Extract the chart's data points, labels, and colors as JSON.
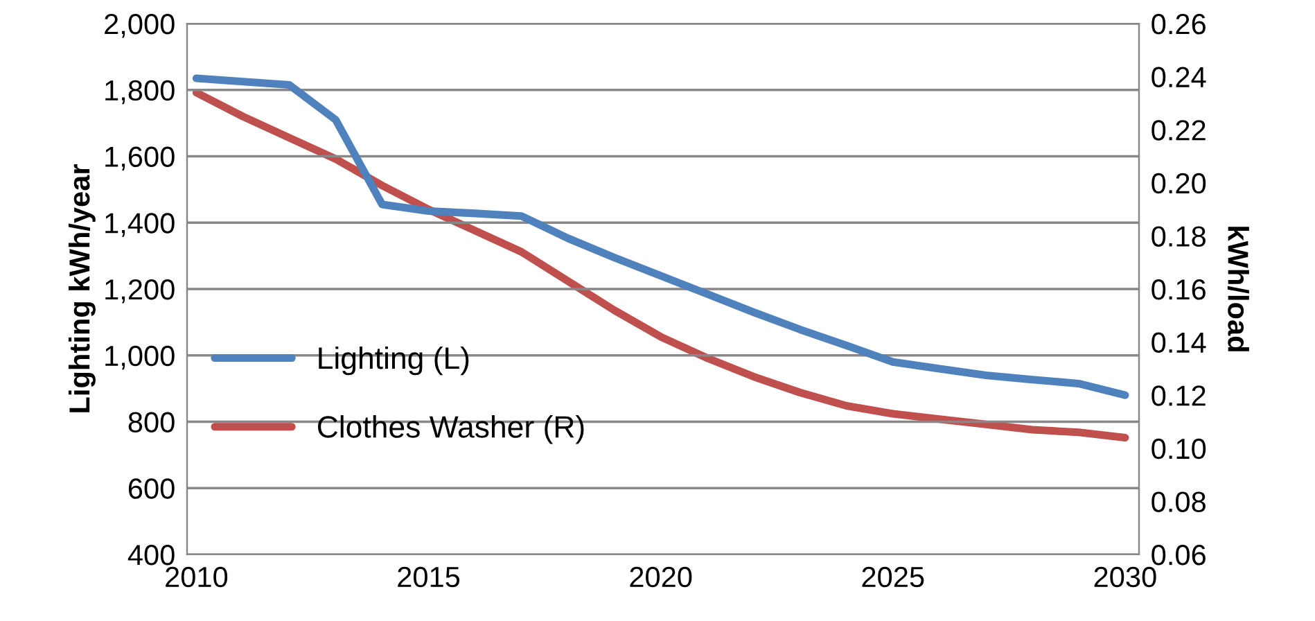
{
  "chart_data": {
    "type": "line",
    "ylabel": "Lighting kWh/year",
    "y2label": "kWh/load",
    "x": [
      2010,
      2011,
      2012,
      2013,
      2014,
      2015,
      2016,
      2017,
      2018,
      2019,
      2020,
      2021,
      2022,
      2023,
      2024,
      2025,
      2026,
      2027,
      2028,
      2029,
      2030
    ],
    "series": [
      {
        "name": "Lighting (L)",
        "color": "#4f81bd",
        "values": [
          1835,
          1825,
          1815,
          1710,
          1455,
          1435,
          1428,
          1420,
          1353,
          1295,
          1240,
          1185,
          1130,
          1078,
          1030,
          980,
          960,
          940,
          927,
          915,
          880
        ]
      },
      {
        "name": "Clothes Washer (R)",
        "color": "#c0504d",
        "axis": "y2",
        "values": [
          0.234,
          0.225,
          0.217,
          0.209,
          0.199,
          0.19,
          0.182,
          0.174,
          0.163,
          0.152,
          0.142,
          0.134,
          0.127,
          0.121,
          0.116,
          0.113,
          0.111,
          0.109,
          0.107,
          0.106,
          0.104
        ]
      }
    ],
    "xlim": [
      2009.8,
      2030.3
    ],
    "xticks": [
      2010,
      2015,
      2020,
      2025,
      2030
    ],
    "ylim": [
      400,
      2000
    ],
    "yticks": [
      {
        "value": 400,
        "label": "400"
      },
      {
        "value": 600,
        "label": "600"
      },
      {
        "value": 800,
        "label": "800"
      },
      {
        "value": 1000,
        "label": "1,000"
      },
      {
        "value": 1200,
        "label": "1,200"
      },
      {
        "value": 1400,
        "label": "1,400"
      },
      {
        "value": 1600,
        "label": "1,600"
      },
      {
        "value": 1800,
        "label": "1,800"
      },
      {
        "value": 2000,
        "label": "2,000"
      }
    ],
    "y2lim": [
      0.06,
      0.26
    ],
    "y2ticks": [
      {
        "value": 0.06,
        "label": "0.06"
      },
      {
        "value": 0.08,
        "label": "0.08"
      },
      {
        "value": 0.1,
        "label": "0.10"
      },
      {
        "value": 0.12,
        "label": "0.12"
      },
      {
        "value": 0.14,
        "label": "0.14"
      },
      {
        "value": 0.16,
        "label": "0.16"
      },
      {
        "value": 0.18,
        "label": "0.18"
      },
      {
        "value": 0.2,
        "label": "0.20"
      },
      {
        "value": 0.22,
        "label": "0.22"
      },
      {
        "value": 0.24,
        "label": "0.24"
      },
      {
        "value": 0.26,
        "label": "0.26"
      }
    ],
    "grid": "y",
    "legend": "left",
    "marker": "none",
    "line_style": "solid"
  }
}
